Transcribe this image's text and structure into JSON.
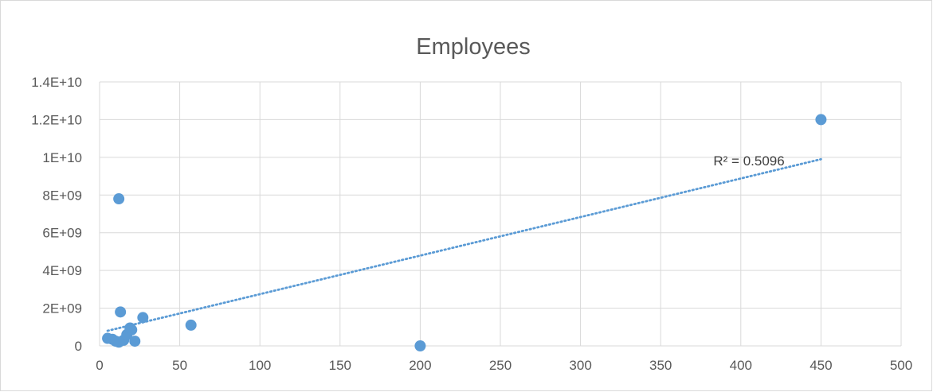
{
  "chart_data": {
    "type": "scatter",
    "title": "Employees",
    "xlabel": "",
    "ylabel": "",
    "xlim": [
      0,
      500
    ],
    "ylim": [
      0,
      14000000000
    ],
    "x_ticks": [
      0,
      50,
      100,
      150,
      200,
      250,
      300,
      350,
      400,
      450,
      500
    ],
    "x_tick_labels": [
      "0",
      "50",
      "100",
      "150",
      "200",
      "250",
      "300",
      "350",
      "400",
      "450",
      "500"
    ],
    "y_ticks": [
      0,
      2000000000,
      4000000000,
      6000000000,
      8000000000,
      10000000000,
      12000000000,
      14000000000
    ],
    "y_tick_labels": [
      "0",
      "2E+09",
      "4E+09",
      "6E+09",
      "8E+09",
      "1E+10",
      "1.2E+10",
      "1.4E+10"
    ],
    "grid": true,
    "legend": "none",
    "series": [
      {
        "color": "#5b9bd5",
        "points": [
          {
            "x": 5,
            "y": 400000000
          },
          {
            "x": 8,
            "y": 350000000
          },
          {
            "x": 10,
            "y": 250000000
          },
          {
            "x": 12,
            "y": 200000000
          },
          {
            "x": 12,
            "y": 7800000000
          },
          {
            "x": 13,
            "y": 1800000000
          },
          {
            "x": 15,
            "y": 300000000
          },
          {
            "x": 17,
            "y": 600000000
          },
          {
            "x": 19,
            "y": 950000000
          },
          {
            "x": 20,
            "y": 850000000
          },
          {
            "x": 22,
            "y": 250000000
          },
          {
            "x": 27,
            "y": 1500000000
          },
          {
            "x": 57,
            "y": 1100000000
          },
          {
            "x": 200,
            "y": 0
          },
          {
            "x": 450,
            "y": 12000000000
          }
        ]
      }
    ],
    "trendline": {
      "type": "linear",
      "style": "dotted",
      "color": "#5b9bd5",
      "x_range": [
        5,
        450
      ],
      "y_start": 800000000,
      "y_end": 9900000000,
      "label": "R² = 0.5096"
    }
  }
}
